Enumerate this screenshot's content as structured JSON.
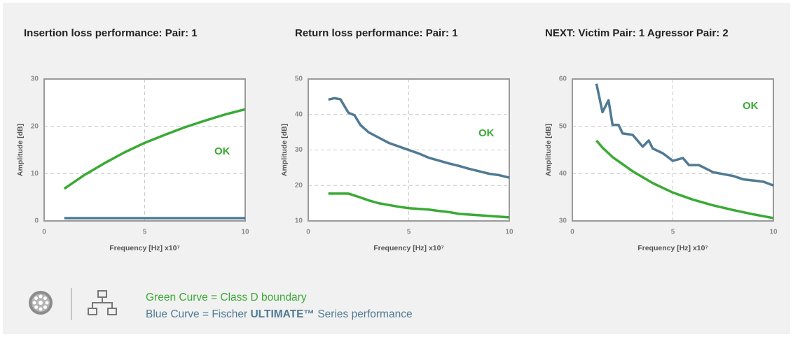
{
  "chart_data": [
    {
      "type": "line",
      "title": "Insertion loss performance: Pair: 1",
      "x_label": "Frequency [Hz] x10⁷",
      "y_label": "Amplitude [dB]",
      "annotation": "OK",
      "xlim": [
        0,
        10
      ],
      "xticks": [
        0,
        5,
        10
      ],
      "ylim": [
        0,
        30
      ],
      "yticks": [
        0,
        10,
        20,
        30
      ],
      "grid": true,
      "series": [
        {
          "color": "#3aaa35",
          "x": [
            1,
            2,
            3,
            4,
            5,
            6,
            7,
            8,
            9,
            10
          ],
          "values": [
            6.8,
            9.7,
            12.2,
            14.5,
            16.5,
            18.2,
            19.8,
            21.2,
            22.5,
            23.6
          ]
        },
        {
          "color": "#4f7a94",
          "x": [
            1,
            10
          ],
          "values": [
            0.6,
            0.6
          ]
        }
      ]
    },
    {
      "type": "line",
      "title": "Return loss performance: Pair: 1",
      "x_label": "Frequency [Hz] x10⁷",
      "y_label": "Amplitude [dB]",
      "annotation": "OK",
      "xlim": [
        0,
        10
      ],
      "xticks": [
        0,
        5,
        10
      ],
      "ylim": [
        10,
        50
      ],
      "yticks": [
        10,
        20,
        30,
        40,
        50
      ],
      "grid": true,
      "series": [
        {
          "color": "#3aaa35",
          "x": [
            1,
            2,
            2.5,
            3,
            3.5,
            4,
            4.5,
            5,
            5.5,
            6,
            6.5,
            7,
            7.5,
            8,
            9,
            10
          ],
          "values": [
            17.7,
            17.7,
            16.8,
            15.8,
            15,
            14.5,
            14,
            13.6,
            13.4,
            13.2,
            12.8,
            12.5,
            12,
            11.8,
            11.4,
            11
          ]
        },
        {
          "color": "#4f7a94",
          "x": [
            1,
            1.3,
            1.6,
            2,
            2.3,
            2.6,
            3,
            3.5,
            4,
            4.5,
            5,
            5.5,
            6,
            6.5,
            7,
            7.5,
            8,
            8.5,
            9,
            9.5,
            10
          ],
          "values": [
            44.2,
            44.6,
            44.3,
            40.5,
            39.8,
            37,
            35,
            33.5,
            32,
            31,
            30,
            29,
            27.8,
            27,
            26.2,
            25.5,
            24.7,
            24,
            23.3,
            22.9,
            22.2
          ]
        }
      ]
    },
    {
      "type": "line",
      "title": "NEXT: Victim Pair: 1 Agressor Pair: 2",
      "x_label": "Frequency [Hz] x10⁷",
      "y_label": "Amplitude [dB]",
      "annotation": "OK",
      "xlim": [
        0,
        10
      ],
      "xticks": [
        0,
        5,
        10
      ],
      "ylim": [
        30,
        60
      ],
      "yticks": [
        30,
        40,
        50,
        60
      ],
      "grid": true,
      "series": [
        {
          "color": "#3aaa35",
          "x": [
            1.2,
            1.5,
            2,
            3,
            4,
            5,
            6,
            7,
            8,
            9,
            10
          ],
          "values": [
            47,
            45.5,
            43.5,
            40.5,
            38,
            36,
            34.5,
            33.3,
            32.3,
            31.4,
            30.6
          ]
        },
        {
          "color": "#4f7a94",
          "x": [
            1.2,
            1.5,
            1.8,
            2,
            2.3,
            2.5,
            3,
            3.5,
            3.8,
            4,
            4.5,
            5,
            5.5,
            5.8,
            6.3,
            7,
            8,
            8.5,
            9.5,
            10
          ],
          "values": [
            59,
            53,
            55.5,
            50.3,
            50.3,
            48.5,
            48.2,
            45.7,
            47,
            45.3,
            44.3,
            42.7,
            43.3,
            41.8,
            41.8,
            40.3,
            39.5,
            38.8,
            38.3,
            37.5
          ]
        }
      ]
    }
  ],
  "legend": {
    "green": "Green Curve = Class D boundary",
    "blue": [
      "Blue Curve = Fischer",
      "ULTIMATE™",
      "Series performance"
    ]
  }
}
